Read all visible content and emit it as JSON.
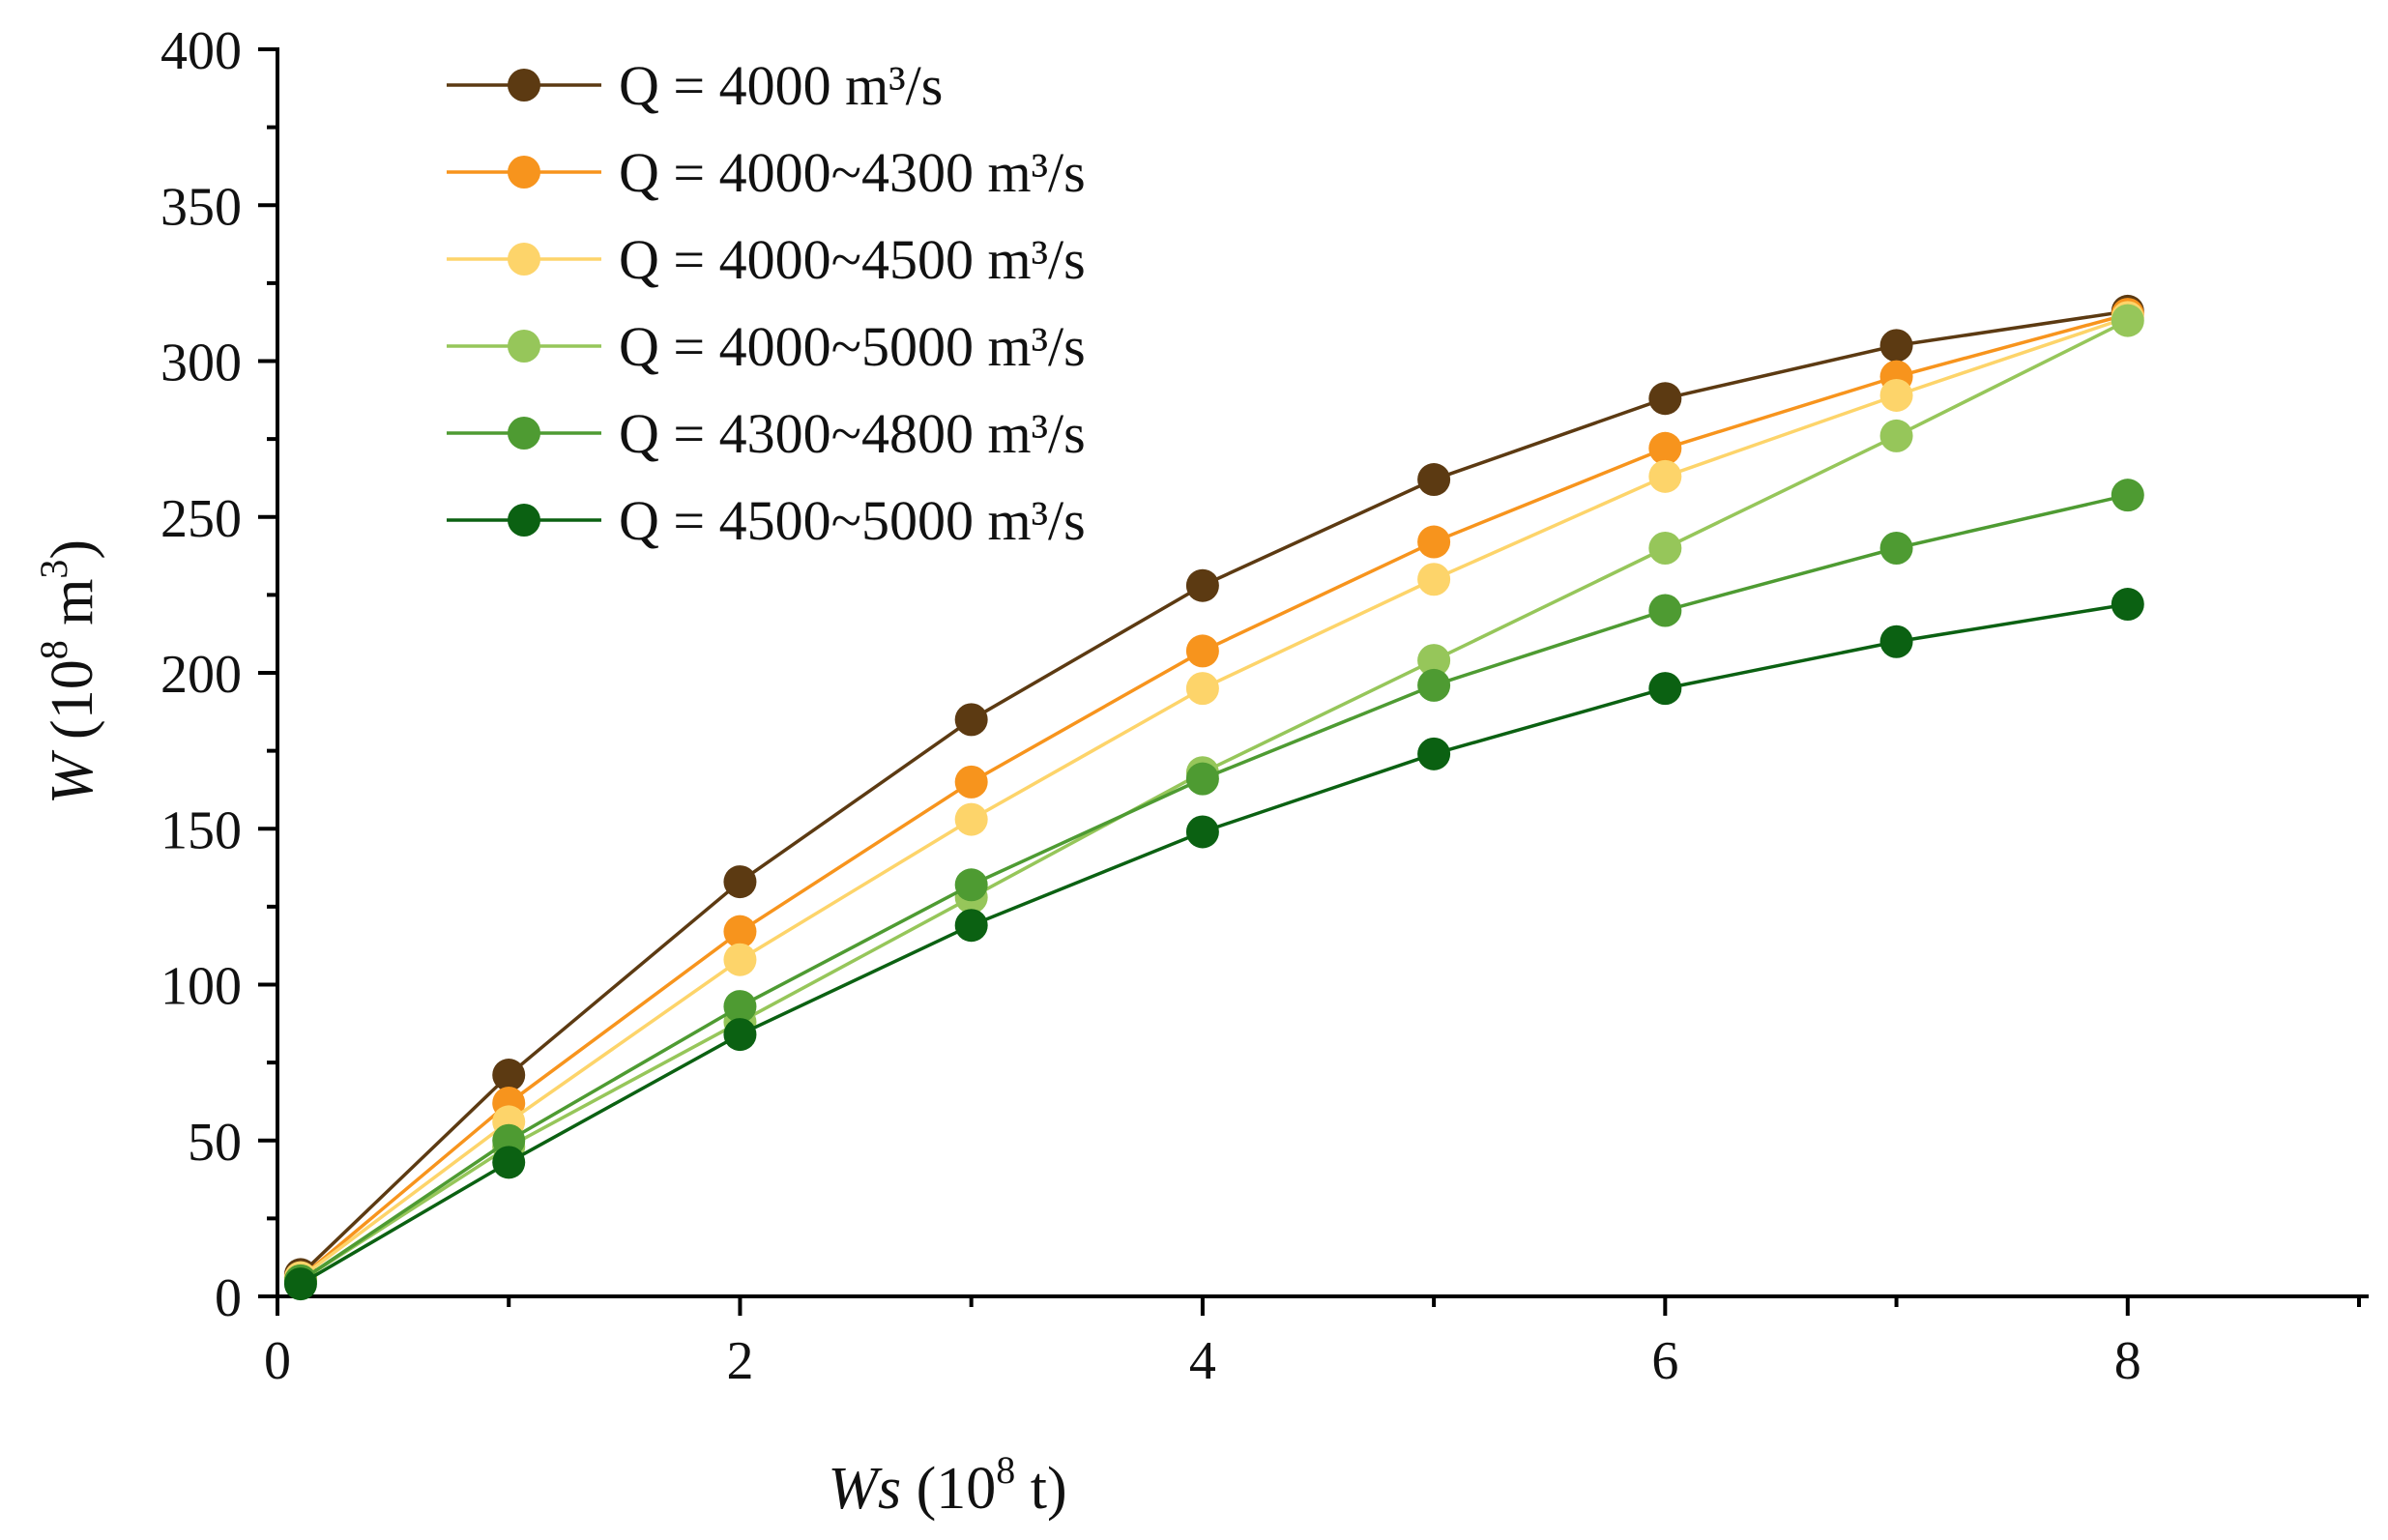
{
  "chart_data": {
    "type": "line",
    "title": "",
    "xlabel": {
      "italic": "Ws",
      "unit_open": " (10",
      "unit_sup": "8",
      "unit_close": " t)"
    },
    "ylabel": {
      "italic": "W",
      "unit_open": " (10",
      "unit_sup": "8",
      "unit_mid": " m",
      "unit_sup2": "3",
      "unit_close": ")"
    },
    "xlim": [
      0,
      9
    ],
    "ylim": [
      0,
      400
    ],
    "x_ticks": [
      0,
      2,
      4,
      6,
      8
    ],
    "y_ticks": [
      0,
      50,
      100,
      150,
      200,
      250,
      300,
      350,
      400
    ],
    "x_tick_labels": [
      "0",
      "2",
      "4",
      "6",
      "8"
    ],
    "y_tick_labels": [
      "0",
      "50",
      "100",
      "150",
      "200",
      "250",
      "300",
      "350",
      "400"
    ],
    "x_minor_ticks": [
      1,
      3,
      5,
      7,
      9
    ],
    "y_minor_ticks": [
      25,
      75,
      125,
      175,
      225,
      275,
      325,
      375
    ],
    "grid": false,
    "legend_position": "top-left",
    "x": [
      0.1,
      1,
      2,
      3,
      4,
      5,
      6,
      7,
      8
    ],
    "series": [
      {
        "name": "Q = 4000 m³/s",
        "color": "#5c3a12",
        "values": [
          7,
          71,
          133,
          185,
          228,
          262,
          288,
          305,
          316
        ]
      },
      {
        "name": "Q = 4000~4300 m³/s",
        "color": "#f7941d",
        "values": [
          6,
          62,
          117,
          165,
          207,
          242,
          272,
          295,
          315
        ]
      },
      {
        "name": "Q = 4000~4500 m³/s",
        "color": "#fdd46a",
        "values": [
          6,
          56,
          108,
          153,
          195,
          230,
          263,
          289,
          314
        ]
      },
      {
        "name": "Q = 4000~5000 m³/s",
        "color": "#96c65a",
        "values": [
          5,
          48,
          88,
          128,
          168,
          204,
          240,
          276,
          313
        ]
      },
      {
        "name": "Q = 4300~4800 m³/s",
        "color": "#4e9b32",
        "values": [
          5,
          50,
          93,
          132,
          166,
          196,
          220,
          240,
          257
        ]
      },
      {
        "name": "Q = 4500~5000 m³/s",
        "color": "#0b6112",
        "values": [
          4,
          43,
          84,
          119,
          149,
          174,
          195,
          210,
          222
        ]
      }
    ]
  }
}
